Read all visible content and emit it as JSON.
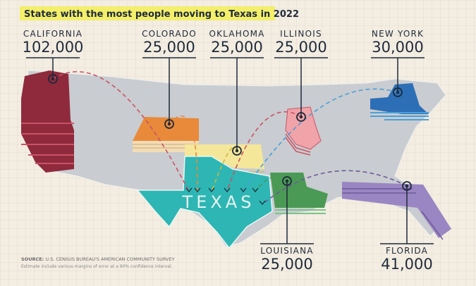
{
  "title": "States with the most people moving to Texas in 2022",
  "map_label": "TEXAS",
  "states": [
    {
      "name": "CALIFORNIA",
      "value": "102,000"
    },
    {
      "name": "COLORADO",
      "value": "25,000"
    },
    {
      "name": "OKLAHOMA",
      "value": "25,000"
    },
    {
      "name": "ILLINOIS",
      "value": "25,000"
    },
    {
      "name": "NEW YORK",
      "value": "30,000"
    },
    {
      "name": "LOUISIANA",
      "value": "25,000"
    },
    {
      "name": "FLORIDA",
      "value": "41,000"
    }
  ],
  "source": {
    "label": "SOURCE:",
    "text": "U.S. CENSUS BUREAU'S AMERICAN COMMUNITY SURVEY"
  },
  "note": "Estimate include various margins of error at a 90% confidence interval."
}
